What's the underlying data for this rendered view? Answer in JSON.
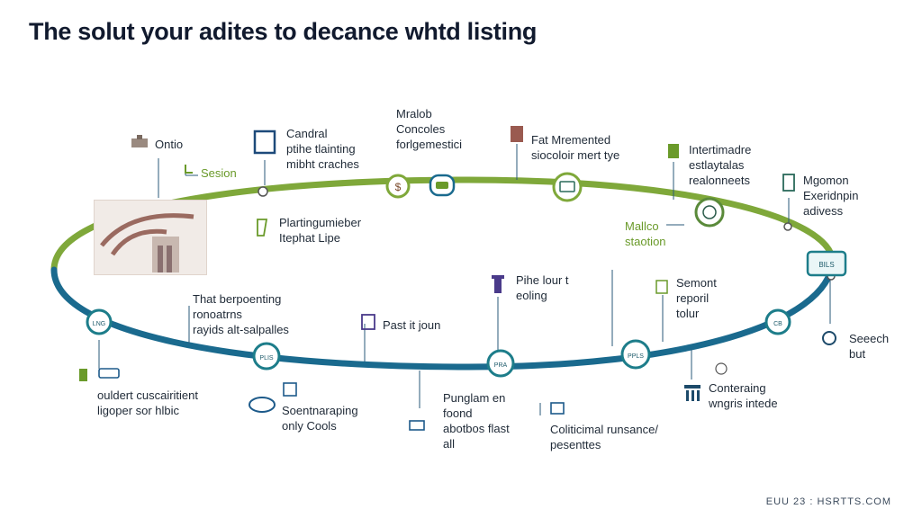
{
  "title": "The solut your adites to decance whtd listing",
  "footer": "EUU 23 : HSRTTS.COM",
  "colors": {
    "ring_green": "#7fa83a",
    "ring_teal": "#1d7d8a",
    "ring_blue": "#1a6a8e",
    "title": "#111a2e"
  },
  "labels": {
    "l1": "Ontio",
    "l2": "Sesion",
    "l3": "Candral\nptihe tlainting\nmibht craches",
    "l4": "Mralob\nConcoles\nforlgemestici",
    "l5": "Fat Mremented\nsiocoloir mert tye",
    "l6": "Intertimadre\nestlaytalas\nrealonneets",
    "l7": "Mgomon\nExeridnpin\nadivess",
    "l8": "Plartingumieber\nItephat Lipe",
    "l9": "Mallco\nstaotion",
    "l10": "That berpoenting\nronoatrns\nrayids alt-salpalles",
    "l11": "Past it joun",
    "l12": "Pihe lour t\neoling",
    "l13": "Semont\nreporil\ntolur",
    "l14": "Seeech\nbut",
    "l15": "ouldert cuscairitient\nligoper sor hlbic",
    "l16": "Soentnaraping\nonly Cools",
    "l17": "Punglam en\nfoond\nabotbos flast\nall",
    "l18": "Coliticimal runsance/\npesenttes",
    "l19": "Conteraing\nwngris intede"
  },
  "node_text": {
    "n1": "LNG",
    "n2": "PLIS",
    "n3": "PRA",
    "n4": "PPLS",
    "n5": "CB",
    "n6": "BILS"
  },
  "icons": [
    "sink-icon",
    "trowel-icon",
    "frame-icon",
    "dollar-icon",
    "car-icon",
    "bucket-icon",
    "gift-icon",
    "phone-icon",
    "chart-icon",
    "bottle-icon",
    "hand-icon",
    "check-icon",
    "pin-icon",
    "clipboard-icon",
    "computer-icon",
    "book-icon",
    "globe-icon",
    "money-icon",
    "bank-icon",
    "coins-icon",
    "house-icon",
    "cup-icon"
  ]
}
